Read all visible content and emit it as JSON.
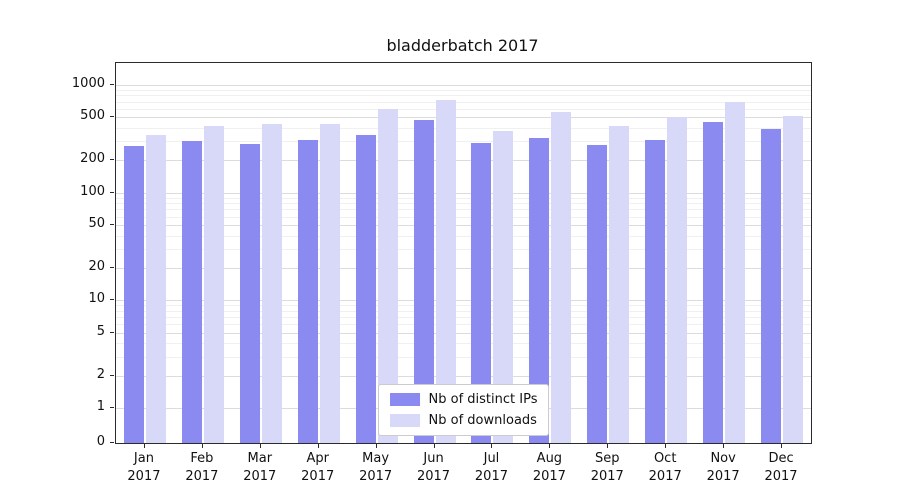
{
  "chart_data": {
    "type": "bar",
    "title": "bladderbatch 2017",
    "categories": [
      "Jan 2017",
      "Feb 2017",
      "Mar 2017",
      "Apr 2017",
      "May 2017",
      "Jun 2017",
      "Jul 2017",
      "Aug 2017",
      "Sep 2017",
      "Oct 2017",
      "Nov 2017",
      "Dec 2017"
    ],
    "series": [
      {
        "name": "Nb of distinct IPs",
        "color": "#8a8af0",
        "values": [
          270,
          300,
          285,
          310,
          340,
          470,
          290,
          320,
          275,
          310,
          455,
          390
        ]
      },
      {
        "name": "Nb of downloads",
        "color": "#d8d8f8",
        "values": [
          340,
          420,
          430,
          430,
          600,
          720,
          370,
          560,
          415,
          500,
          700,
          510
        ]
      }
    ],
    "yticks": [
      0,
      1,
      2,
      5,
      10,
      20,
      50,
      100,
      200,
      500,
      1000
    ],
    "ylim": [
      0,
      1600
    ],
    "yscale": "log",
    "xlabel": "",
    "ylabel": "",
    "grid": true,
    "legend_position": "lower center"
  }
}
